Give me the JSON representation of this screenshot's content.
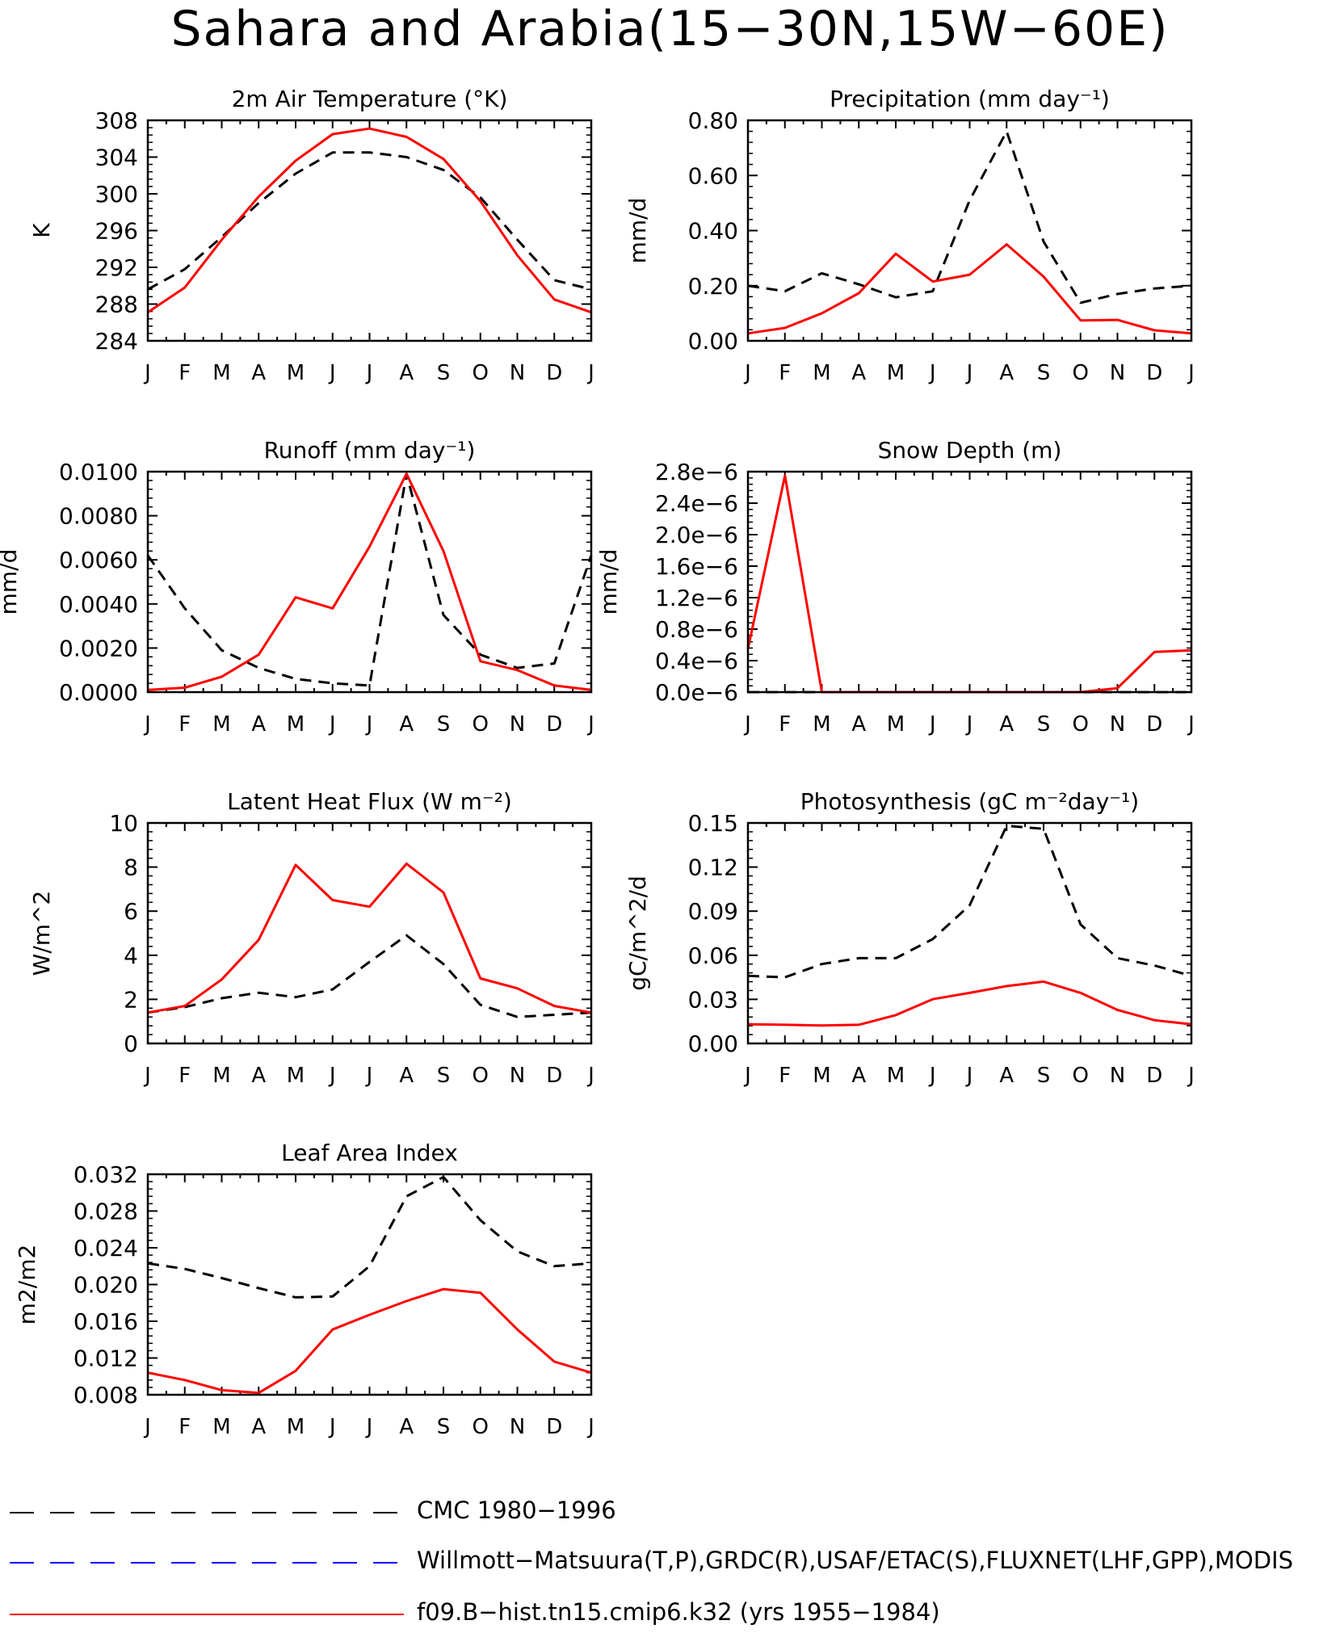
{
  "title": "Sahara and Arabia(15−30N,15W−60E)",
  "colors": {
    "model": "#ff0000",
    "cmc": "#000000",
    "obs": "#0000ff"
  },
  "months": [
    "J",
    "F",
    "M",
    "A",
    "M",
    "J",
    "J",
    "A",
    "S",
    "O",
    "N",
    "D",
    "J"
  ],
  "legend": [
    {
      "label": "CMC 1980−1996",
      "color": "#000000",
      "dash": true
    },
    {
      "label": "Willmott−Matsuura(T,P),GRDC(R),USAF/ETAC(S),FLUXNET(LHF,GPP),MODIS",
      "color": "#0000ff",
      "dash": true
    },
    {
      "label": "f09.B−hist.tn15.cmip6.k32 (yrs 1955−1984)",
      "color": "#ff0000",
      "dash": false
    }
  ],
  "chart_data": [
    {
      "type": "line",
      "title": "2m Air Temperature (°K)",
      "ylabel": "K",
      "ylim": [
        284,
        308
      ],
      "yticks": [
        "284",
        "288",
        "292",
        "296",
        "300",
        "304",
        "308"
      ],
      "series": [
        {
          "name": "CMC 1980−1996",
          "style": "dashed",
          "values": [
            289.6,
            291.8,
            295.3,
            299.0,
            302.2,
            304.5,
            304.5,
            304.0,
            302.6,
            299.6,
            295.0,
            290.6,
            289.6
          ]
        },
        {
          "name": "f09.B−hist.tn15.cmip6.k32 (yrs 1955−1984)",
          "style": "solid",
          "values": [
            287.1,
            289.8,
            295.0,
            299.7,
            303.6,
            306.5,
            307.1,
            306.2,
            303.8,
            299.2,
            293.3,
            288.5,
            287.1
          ]
        }
      ]
    },
    {
      "type": "line",
      "title": "Precipitation (mm day⁻¹)",
      "ylabel": "mm/d",
      "ylim": [
        0,
        0.8
      ],
      "yticks": [
        "0.00",
        "0.20",
        "0.40",
        "0.60",
        "0.80"
      ],
      "series": [
        {
          "name": "CMC 1980−1996",
          "style": "dashed",
          "values": [
            0.2,
            0.18,
            0.245,
            0.205,
            0.158,
            0.18,
            0.51,
            0.76,
            0.36,
            0.138,
            0.17,
            0.19,
            0.2
          ]
        },
        {
          "name": "f09.B−hist.tn15.cmip6.k32 (yrs 1955−1984)",
          "style": "solid",
          "values": [
            0.027,
            0.047,
            0.1,
            0.173,
            0.316,
            0.215,
            0.24,
            0.35,
            0.233,
            0.074,
            0.076,
            0.038,
            0.027
          ]
        }
      ]
    },
    {
      "type": "line",
      "title": "Runoff (mm day⁻¹)",
      "ylabel": "mm/d",
      "ylim": [
        0,
        0.01
      ],
      "yticks": [
        "0.0000",
        "0.0020",
        "0.0040",
        "0.0060",
        "0.0080",
        "0.0100"
      ],
      "series": [
        {
          "name": "CMC 1980−1996",
          "style": "dashed",
          "values": [
            0.0062,
            0.0038,
            0.0019,
            0.0011,
            0.0006,
            0.0004,
            0.0003,
            0.0099,
            0.0035,
            0.0017,
            0.0011,
            0.0013,
            0.0062
          ]
        },
        {
          "name": "f09.B−hist.tn15.cmip6.k32 (yrs 1955−1984)",
          "style": "solid",
          "values": [
            0.0001,
            0.0002,
            0.0007,
            0.0017,
            0.0043,
            0.0038,
            0.0066,
            0.0099,
            0.0064,
            0.0014,
            0.001,
            0.0003,
            0.0001
          ]
        }
      ]
    },
    {
      "type": "line",
      "title": "Snow Depth (m)",
      "ylabel": "mm/d",
      "ylim": [
        0,
        2.8e-06
      ],
      "yticks": [
        "0.0e−6",
        "0.4e−6",
        "0.8e−6",
        "1.2e−6",
        "1.6e−6",
        "2.0e−6",
        "2.4e−6",
        "2.8e−6"
      ],
      "series": [
        {
          "name": "CMC 1980−1996",
          "style": "dashed",
          "values": [
            0,
            0,
            0,
            0,
            0,
            0,
            0,
            0,
            0,
            0,
            0,
            0,
            0
          ]
        },
        {
          "name": "f09.B−hist.tn15.cmip6.k32 (yrs 1955−1984)",
          "style": "solid",
          "values": [
            5.5e-07,
            2.75e-06,
            0,
            0,
            0,
            0,
            0,
            0,
            0,
            0,
            5e-08,
            5.1e-07,
            5.3e-07
          ]
        }
      ]
    },
    {
      "type": "line",
      "title": "Latent Heat Flux (W m⁻²)",
      "ylabel": "W/m^2",
      "ylim": [
        0,
        10
      ],
      "yticks": [
        "0",
        "2",
        "4",
        "6",
        "8",
        "10"
      ],
      "series": [
        {
          "name": "CMC 1980−1996",
          "style": "dashed",
          "values": [
            1.4,
            1.65,
            2.05,
            2.3,
            2.1,
            2.45,
            3.7,
            4.9,
            3.6,
            1.75,
            1.2,
            1.3,
            1.4
          ]
        },
        {
          "name": "f09.B−hist.tn15.cmip6.k32 (yrs 1955−1984)",
          "style": "solid",
          "values": [
            1.4,
            1.7,
            2.9,
            4.7,
            8.1,
            6.5,
            6.2,
            8.15,
            6.85,
            2.95,
            2.5,
            1.7,
            1.4
          ]
        }
      ]
    },
    {
      "type": "line",
      "title": "Photosynthesis (gC m⁻²day⁻¹)",
      "ylabel": "gC/m^2/d",
      "ylim": [
        0,
        0.15
      ],
      "yticks": [
        "0.00",
        "0.03",
        "0.06",
        "0.09",
        "0.12",
        "0.15"
      ],
      "series": [
        {
          "name": "CMC 1980−1996",
          "style": "dashed",
          "values": [
            0.046,
            0.045,
            0.054,
            0.058,
            0.058,
            0.071,
            0.094,
            0.148,
            0.146,
            0.081,
            0.058,
            0.053,
            0.046
          ]
        },
        {
          "name": "f09.B−hist.tn15.cmip6.k32 (yrs 1955−1984)",
          "style": "solid",
          "values": [
            0.013,
            0.0127,
            0.0122,
            0.0127,
            0.0193,
            0.0301,
            0.0344,
            0.039,
            0.0421,
            0.0344,
            0.0228,
            0.0158,
            0.013
          ]
        }
      ]
    },
    {
      "type": "line",
      "title": "Leaf Area Index",
      "ylabel": "m2/m2",
      "ylim": [
        0.008,
        0.032
      ],
      "yticks": [
        "0.008",
        "0.012",
        "0.016",
        "0.020",
        "0.024",
        "0.028",
        "0.032"
      ],
      "series": [
        {
          "name": "CMC 1980−1996",
          "style": "dashed",
          "values": [
            0.0223,
            0.0217,
            0.0207,
            0.0196,
            0.0186,
            0.0187,
            0.022,
            0.0296,
            0.0317,
            0.027,
            0.0236,
            0.022,
            0.0223
          ]
        },
        {
          "name": "f09.B−hist.tn15.cmip6.k32 (yrs 1955−1984)",
          "style": "solid",
          "values": [
            0.0104,
            0.0096,
            0.0085,
            0.0082,
            0.0106,
            0.0151,
            0.0167,
            0.0182,
            0.0195,
            0.0191,
            0.0151,
            0.0116,
            0.0104
          ]
        }
      ]
    }
  ]
}
